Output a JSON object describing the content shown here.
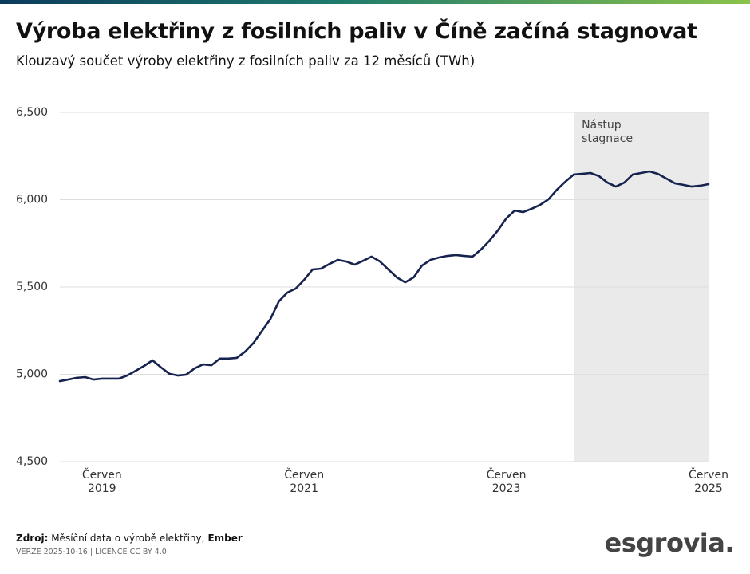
{
  "chart_data": {
    "type": "line",
    "title": "Výroba elektřiny z fosilních paliv v Číně začíná stagnovat",
    "subtitle": "Klouzavý součet výroby elektřiny z fosilních paliv za 12 měsíců (TWh)",
    "x": [
      "2019-01",
      "2019-02",
      "2019-03",
      "2019-04",
      "2019-05",
      "2019-06",
      "2019-07",
      "2019-08",
      "2019-09",
      "2019-10",
      "2019-11",
      "2019-12",
      "2020-01",
      "2020-02",
      "2020-03",
      "2020-04",
      "2020-05",
      "2020-06",
      "2020-07",
      "2020-08",
      "2020-09",
      "2020-10",
      "2020-11",
      "2020-12",
      "2021-01",
      "2021-02",
      "2021-03",
      "2021-04",
      "2021-05",
      "2021-06",
      "2021-07",
      "2021-08",
      "2021-09",
      "2021-10",
      "2021-11",
      "2021-12",
      "2022-01",
      "2022-02",
      "2022-03",
      "2022-04",
      "2022-05",
      "2022-06",
      "2022-07",
      "2022-08",
      "2022-09",
      "2022-10",
      "2022-11",
      "2022-12",
      "2023-01",
      "2023-02",
      "2023-03",
      "2023-04",
      "2023-05",
      "2023-06",
      "2023-07",
      "2023-08",
      "2023-09",
      "2023-10",
      "2023-11",
      "2023-12",
      "2024-01",
      "2024-02",
      "2024-03",
      "2024-04",
      "2024-05",
      "2024-06",
      "2024-07",
      "2024-08",
      "2024-09",
      "2024-10",
      "2024-11",
      "2024-12",
      "2025-01",
      "2025-02",
      "2025-03",
      "2025-04",
      "2025-05",
      "2025-06"
    ],
    "values": [
      4961,
      4970,
      4980,
      4984,
      4970,
      4975,
      4975,
      4975,
      4993,
      5020,
      5048,
      5080,
      5040,
      5003,
      4993,
      4998,
      5034,
      5057,
      5052,
      5090,
      5090,
      5094,
      5130,
      5180,
      5249,
      5317,
      5418,
      5468,
      5491,
      5541,
      5600,
      5605,
      5632,
      5655,
      5646,
      5628,
      5650,
      5674,
      5646,
      5600,
      5555,
      5527,
      5555,
      5623,
      5655,
      5669,
      5678,
      5683,
      5678,
      5674,
      5715,
      5765,
      5824,
      5893,
      5938,
      5929,
      5948,
      5970,
      6002,
      6057,
      6103,
      6144,
      6148,
      6153,
      6135,
      6098,
      6075,
      6098,
      6144,
      6153,
      6162,
      6148,
      6121,
      6094,
      6085,
      6075,
      6080,
      6089
    ],
    "color": "#16234f",
    "xlim": [
      "2019-01",
      "2025-06"
    ],
    "xticks": [
      {
        "value": "2019-06",
        "label": "Červen 2019"
      },
      {
        "value": "2021-06",
        "label": "Červen 2021"
      },
      {
        "value": "2023-06",
        "label": "Červen 2023"
      },
      {
        "value": "2025-06",
        "label": "Červen 2025"
      }
    ],
    "ylim": [
      4500,
      6500
    ],
    "yticks": [
      {
        "value": 4500,
        "label": "4,500"
      },
      {
        "value": 5000,
        "label": "5,000"
      },
      {
        "value": 5500,
        "label": "5,500"
      },
      {
        "value": 6000,
        "label": "6,000"
      },
      {
        "value": 6500,
        "label": "6,500"
      }
    ],
    "grid": true,
    "shade": {
      "from": "2024-02",
      "to": "2025-06",
      "label": "Nástup stagnace",
      "color": "#ebeaeb"
    }
  },
  "footer": {
    "source_label": "Zdroj:",
    "source_text": "Měsíční data o výrobě elektřiny,",
    "source_name": "Ember",
    "version": "VERZE 2025-10-16 | LICENCE CC BY 4.0",
    "logo": "esgrovia."
  }
}
